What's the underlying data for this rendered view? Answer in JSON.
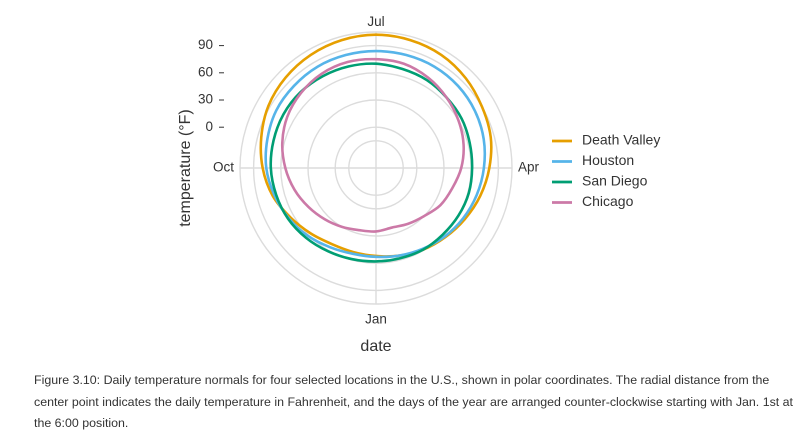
{
  "chart_data": {
    "type": "line",
    "coordinate_system": "polar",
    "direction": "counter-clockwise",
    "start_position": "6:00",
    "xlabel": "date",
    "ylabel": "temperature (°F)",
    "x_ticks": [
      "Jan",
      "Apr",
      "Jul",
      "Oct"
    ],
    "y_ticks": [
      0,
      30,
      60,
      90
    ],
    "ylim": [
      -45,
      105
    ],
    "grid": true,
    "legend_position": "right",
    "x": [
      0.0,
      0.5,
      1.0,
      1.5,
      2.0,
      2.5,
      3.0,
      3.5,
      4.0,
      4.5,
      5.0,
      5.5,
      6.0,
      6.5,
      7.0,
      7.5,
      8.0,
      8.5,
      9.0,
      9.5,
      10.0,
      10.5,
      11.0,
      11.5
    ],
    "series": [
      {
        "name": "Death Valley",
        "color": "#E69F00",
        "values": [
          52,
          55,
          59,
          63,
          68,
          74,
          80,
          86,
          90,
          95,
          99,
          101,
          102,
          101,
          99,
          96,
          92,
          86,
          80,
          73,
          64,
          57,
          52,
          51
        ]
      },
      {
        "name": "Houston",
        "color": "#56B4E9",
        "values": [
          53,
          55,
          58,
          62,
          66,
          70,
          74,
          78,
          81,
          83,
          84,
          84,
          84,
          84,
          84,
          83,
          82,
          79,
          76,
          71,
          66,
          61,
          56,
          53
        ]
      },
      {
        "name": "San Diego",
        "color": "#009E73",
        "values": [
          58,
          58,
          59,
          59,
          60,
          61,
          61,
          62,
          64,
          65,
          67,
          68,
          70,
          71,
          72,
          73,
          73,
          72,
          71,
          69,
          67,
          64,
          61,
          59
        ]
      },
      {
        "name": "Chicago",
        "color": "#CC79A7",
        "values": [
          25,
          23,
          26,
          30,
          37,
          42,
          49,
          55,
          60,
          65,
          70,
          74,
          75,
          76,
          75,
          72,
          68,
          62,
          55,
          48,
          41,
          35,
          30,
          26
        ]
      }
    ]
  },
  "caption": "Figure 3.10: Daily temperature normals for four selected locations in the U.S., shown in polar coordinates. The radial distance from the center point indicates the daily temperature in Fahrenheit, and the days of the year are arranged counter-clockwise starting with Jan. 1st at the 6:00 position."
}
